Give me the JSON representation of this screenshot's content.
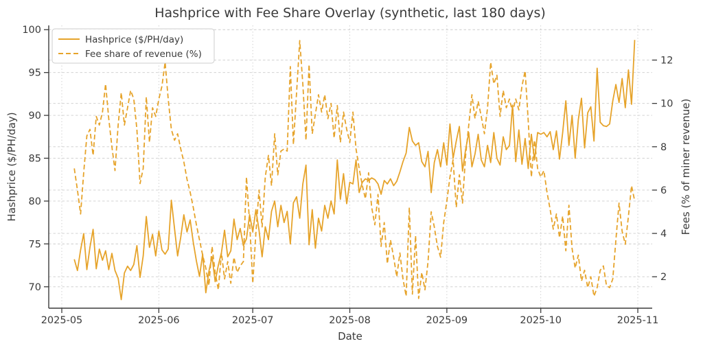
{
  "title": "Hashprice with Fee Share Overlay (synthetic, last 180 days)",
  "axes": {
    "x": {
      "label": "Date",
      "tick_labels": [
        "2025-05",
        "2025-06",
        "2025-07",
        "2025-08",
        "2025-09",
        "2025-10",
        "2025-11"
      ],
      "tick_day_offsets": [
        0,
        31,
        61,
        92,
        123,
        153,
        184
      ]
    },
    "y_left": {
      "label": "Hashprice ($/PH/day)",
      "ticks": [
        70,
        75,
        80,
        85,
        90,
        95,
        100
      ],
      "range": [
        67.5,
        100.5
      ]
    },
    "y_right": {
      "label": "Fees (% of miner revenue)",
      "ticks": [
        2,
        4,
        6,
        8,
        10,
        12
      ],
      "range": [
        0.55,
        13.6
      ]
    }
  },
  "legend": {
    "entries": [
      {
        "label": "Hashprice ($/PH/day)",
        "style": "solid"
      },
      {
        "label": "Fee share of revenue (%)",
        "style": "dashed"
      }
    ]
  },
  "colors": {
    "line": "#E6A32A",
    "grid": "#cccccc",
    "spine": "#3a3a3a",
    "text": "#3a3a3a",
    "legend_border": "#cccccc",
    "background": "#ffffff"
  },
  "chart_data": {
    "type": "line",
    "title": "Hashprice with Fee Share Overlay (synthetic, last 180 days)",
    "xlabel": "Date",
    "start_date": "2025-05-05",
    "end_date": "2025-10-31",
    "x_unit": "day",
    "first_day_offset_from_may1": 4,
    "grid": true,
    "legend_position": "upper-left",
    "series": [
      {
        "name": "Hashprice ($/PH/day)",
        "axis": "left",
        "style": "solid",
        "values": [
          73.2,
          71.9,
          74.3,
          76.2,
          72.0,
          74.6,
          76.7,
          72.1,
          74.4,
          73.1,
          74.2,
          72.0,
          73.9,
          71.9,
          71.0,
          68.5,
          71.6,
          72.4,
          71.9,
          72.6,
          74.8,
          71.1,
          73.6,
          78.2,
          74.6,
          76.1,
          73.6,
          76.5,
          74.3,
          73.8,
          74.4,
          80.1,
          76.8,
          73.6,
          75.8,
          78.4,
          76.4,
          77.8,
          75.2,
          73.0,
          71.2,
          73.8,
          69.3,
          71.8,
          73.5,
          70.6,
          72.5,
          74.0,
          76.6,
          73.5,
          74.2,
          77.9,
          75.5,
          76.8,
          74.8,
          75.6,
          78.4,
          76.4,
          79.0,
          76.6,
          73.5,
          77.0,
          75.5,
          78.8,
          80.0,
          77.0,
          79.5,
          77.5,
          78.8,
          75.0,
          79.8,
          80.5,
          78.0,
          82.0,
          84.2,
          74.9,
          79.0,
          74.5,
          78.0,
          76.5,
          79.5,
          78.0,
          80.0,
          78.5,
          84.8,
          80.2,
          83.2,
          79.7,
          82.2,
          82.0,
          84.8,
          81.0,
          82.2,
          82.6,
          82.4,
          82.7,
          82.5,
          82.0,
          80.8,
          82.4,
          82.0,
          82.6,
          81.8,
          82.3,
          83.4,
          84.6,
          85.6,
          88.6,
          87.0,
          86.5,
          86.8,
          84.6,
          84.0,
          85.8,
          81.0,
          84.5,
          86.0,
          84.0,
          86.8,
          84.2,
          89.0,
          85.0,
          87.0,
          88.7,
          83.5,
          86.0,
          88.0,
          84.0,
          85.5,
          87.8,
          84.8,
          84.0,
          86.5,
          84.5,
          88.0,
          85.0,
          84.2,
          87.5,
          86.0,
          86.5,
          91.2,
          84.6,
          88.3,
          84.3,
          87.3,
          83.8,
          87.8,
          84.8,
          88.0,
          87.8,
          88.0,
          87.5,
          88.1,
          86.0,
          88.2,
          84.9,
          88.0,
          91.7,
          86.5,
          90.0,
          85.0,
          89.5,
          92.0,
          86.2,
          90.3,
          91.0,
          87.0,
          95.5,
          89.2,
          88.8,
          88.7,
          89.0,
          91.7,
          93.6,
          91.5,
          94.3,
          90.9,
          95.3,
          91.3,
          98.8
        ]
      },
      {
        "name": "Fee share of revenue (%)",
        "axis": "right",
        "style": "dashed",
        "values": [
          7.0,
          6.0,
          4.9,
          6.8,
          8.5,
          8.8,
          7.6,
          9.4,
          9.0,
          9.6,
          10.9,
          9.3,
          8.0,
          6.9,
          9.0,
          10.5,
          9.0,
          9.8,
          10.6,
          10.2,
          8.8,
          6.3,
          7.0,
          10.3,
          8.2,
          9.8,
          9.4,
          10.2,
          10.8,
          11.9,
          10.2,
          8.8,
          8.3,
          8.6,
          7.9,
          7.3,
          6.5,
          5.9,
          5.2,
          4.4,
          3.7,
          3.0,
          2.4,
          1.6,
          3.4,
          2.2,
          1.4,
          3.1,
          1.9,
          2.7,
          1.7,
          2.9,
          2.2,
          2.5,
          2.7,
          6.6,
          4.5,
          1.7,
          4.0,
          6.0,
          4.3,
          6.6,
          7.6,
          6.2,
          8.6,
          6.7,
          7.8,
          7.9,
          7.8,
          11.7,
          8.1,
          10.5,
          12.9,
          10.9,
          8.3,
          11.8,
          8.6,
          9.5,
          10.4,
          9.6,
          10.4,
          9.3,
          10.0,
          8.4,
          9.9,
          8.2,
          9.6,
          8.8,
          8.2,
          9.6,
          7.9,
          7.0,
          6.2,
          5.6,
          6.8,
          5.2,
          4.4,
          5.8,
          3.4,
          4.5,
          2.6,
          3.7,
          2.9,
          2.0,
          3.1,
          1.9,
          1.1,
          5.2,
          1.2,
          3.9,
          1.0,
          2.2,
          1.4,
          2.7,
          5.0,
          4.3,
          3.4,
          2.9,
          4.5,
          5.5,
          6.6,
          7.4,
          5.2,
          6.7,
          5.4,
          7.6,
          9.0,
          10.4,
          9.3,
          10.1,
          9.4,
          8.6,
          9.8,
          11.9,
          10.9,
          11.3,
          9.4,
          10.6,
          9.8,
          10.2,
          9.6,
          10.2,
          9.7,
          10.8,
          11.5,
          9.2,
          6.6,
          8.3,
          7.0,
          6.6,
          6.9,
          5.9,
          5.1,
          4.2,
          4.9,
          3.8,
          4.8,
          3.2,
          5.3,
          3.3,
          2.4,
          3.0,
          1.8,
          2.3,
          1.5,
          2.0,
          1.1,
          1.5,
          2.3,
          2.5,
          1.6,
          1.5,
          1.9,
          3.7,
          5.4,
          4.1,
          3.5,
          4.8,
          6.2,
          5.5
        ]
      }
    ]
  }
}
